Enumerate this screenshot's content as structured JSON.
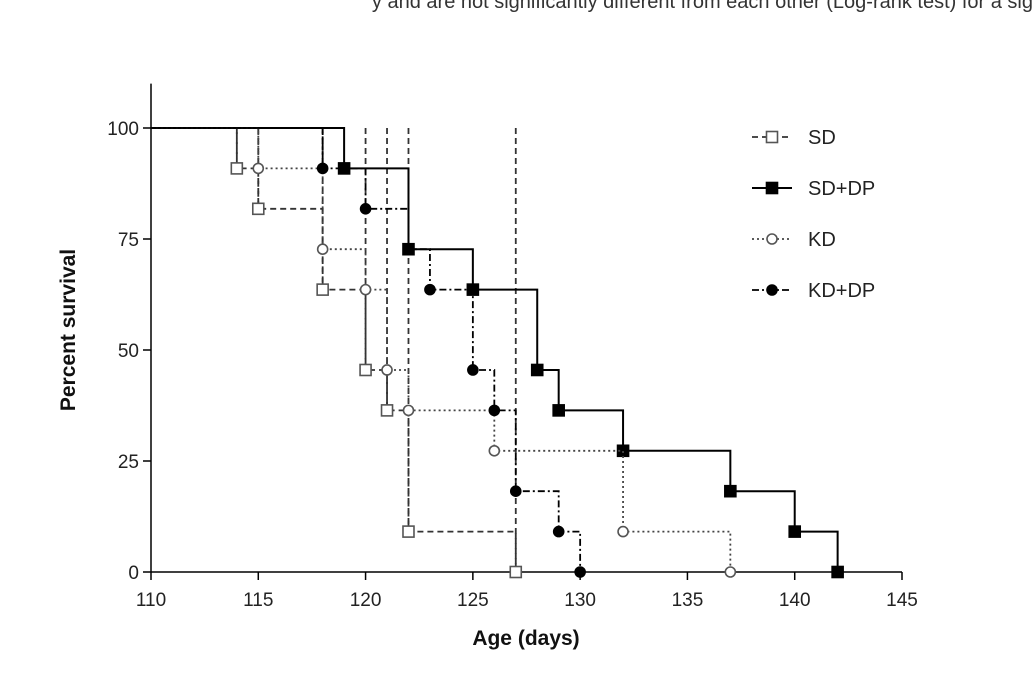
{
  "page": {
    "corner_text": "y and are not significantly different from each other (Log-rank test) for a sig"
  },
  "chart_data": {
    "type": "line",
    "subtype": "kaplan-meier-step",
    "title": "",
    "xlabel": "Age (days)",
    "ylabel": "Percent survival",
    "xlim": [
      110,
      145
    ],
    "ylim": [
      0,
      110
    ],
    "xticks": [
      110,
      115,
      120,
      125,
      130,
      135,
      140,
      145
    ],
    "yticks": [
      0,
      25,
      50,
      75,
      100
    ],
    "grid": false,
    "legend_position": "top-right",
    "series": [
      {
        "name": "SD",
        "marker": "open-square",
        "line_style": "dashed",
        "color": "#333333",
        "steps": [
          [
            110,
            100
          ],
          [
            114,
            90.9
          ],
          [
            115,
            81.8
          ],
          [
            118,
            63.6
          ],
          [
            120,
            45.5
          ],
          [
            121,
            36.4
          ],
          [
            122,
            9.1
          ],
          [
            127,
            0
          ]
        ],
        "drop_ticks": [
          114,
          115,
          118,
          120,
          121,
          122,
          127
        ],
        "markers": [
          [
            114,
            90.9
          ],
          [
            115,
            81.8
          ],
          [
            118,
            63.6
          ],
          [
            120,
            45.5
          ],
          [
            121,
            36.4
          ],
          [
            122,
            9.1
          ],
          [
            127,
            0
          ]
        ]
      },
      {
        "name": "SD+DP",
        "marker": "filled-square",
        "line_style": "solid",
        "color": "#000000",
        "steps": [
          [
            110,
            100
          ],
          [
            119,
            90.9
          ],
          [
            122,
            72.7
          ],
          [
            125,
            63.6
          ],
          [
            128,
            45.5
          ],
          [
            129,
            36.4
          ],
          [
            132,
            27.3
          ],
          [
            137,
            18.2
          ],
          [
            140,
            9.1
          ],
          [
            142,
            0
          ]
        ],
        "drop_ticks": [],
        "markers": [
          [
            119,
            90.9
          ],
          [
            122,
            72.7
          ],
          [
            125,
            63.6
          ],
          [
            128,
            45.5
          ],
          [
            129,
            36.4
          ],
          [
            132,
            27.3
          ],
          [
            137,
            18.2
          ],
          [
            140,
            9.1
          ],
          [
            142,
            0
          ]
        ]
      },
      {
        "name": "KD",
        "marker": "open-circle",
        "line_style": "dotted",
        "color": "#444444",
        "steps": [
          [
            110,
            100
          ],
          [
            115,
            90.9
          ],
          [
            118,
            72.7
          ],
          [
            120,
            63.6
          ],
          [
            121,
            45.5
          ],
          [
            122,
            36.4
          ],
          [
            126,
            27.3
          ],
          [
            132,
            9.1
          ],
          [
            137,
            0
          ]
        ],
        "drop_ticks": [
          115
        ],
        "markers": [
          [
            115,
            90.9
          ],
          [
            118,
            72.7
          ],
          [
            120,
            63.6
          ],
          [
            121,
            45.5
          ],
          [
            122,
            36.4
          ],
          [
            126,
            27.3
          ],
          [
            132,
            9.1
          ],
          [
            137,
            0
          ]
        ]
      },
      {
        "name": "KD+DP",
        "marker": "filled-circle",
        "line_style": "dash-dot",
        "color": "#000000",
        "steps": [
          [
            110,
            100
          ],
          [
            118,
            90.9
          ],
          [
            120,
            81.8
          ],
          [
            122,
            72.7
          ],
          [
            123,
            63.6
          ],
          [
            125,
            45.5
          ],
          [
            126,
            36.4
          ],
          [
            127,
            18.2
          ],
          [
            129,
            9.1
          ],
          [
            130,
            0
          ]
        ],
        "drop_ticks": [
          118
        ],
        "markers": [
          [
            118,
            90.9
          ],
          [
            120,
            81.8
          ],
          [
            123,
            63.6
          ],
          [
            125,
            45.5
          ],
          [
            126,
            36.4
          ],
          [
            127,
            18.2
          ],
          [
            129,
            9.1
          ],
          [
            130,
            0
          ]
        ]
      }
    ]
  }
}
